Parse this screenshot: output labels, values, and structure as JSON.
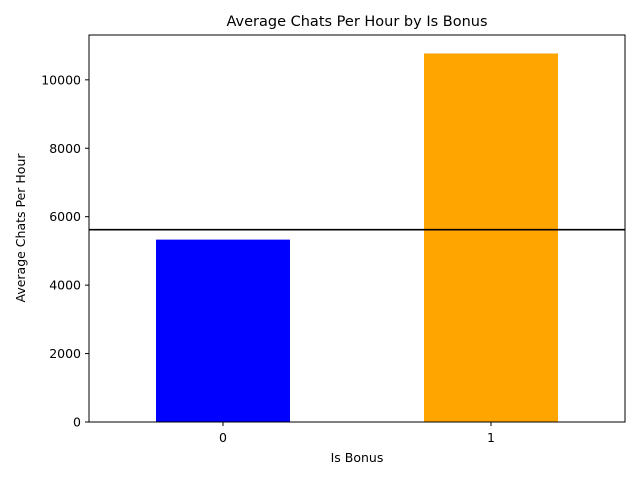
{
  "chart_data": {
    "type": "bar",
    "title": "Average Chats Per Hour by Is Bonus",
    "xlabel": "Is Bonus",
    "ylabel": "Average Chats Per Hour",
    "categories": [
      "0",
      "1"
    ],
    "values": [
      5330,
      10770
    ],
    "colors": [
      "#0000ff",
      "#ffa500"
    ],
    "yticks": [
      0,
      2000,
      4000,
      6000,
      8000,
      10000
    ],
    "ylim": [
      0,
      11310
    ],
    "reference_line": {
      "value": 5620,
      "color": "#000000"
    },
    "grid": false,
    "legend": "none"
  }
}
